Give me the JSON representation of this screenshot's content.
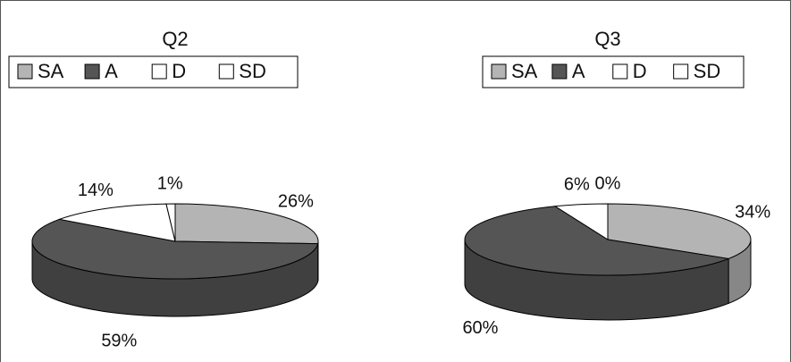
{
  "chart_data": [
    {
      "type": "pie",
      "title": "Q2",
      "categories": [
        "SA",
        "A",
        "D",
        "SD"
      ],
      "values": [
        26,
        59,
        14,
        1
      ],
      "value_labels": [
        "26%",
        "59%",
        "14%",
        "1%"
      ],
      "colors": [
        "#b4b4b4",
        "#555555",
        "#ffffff",
        "#ffffff"
      ],
      "legend": "top"
    },
    {
      "type": "pie",
      "title": "Q3",
      "categories": [
        "SA",
        "A",
        "D",
        "SD"
      ],
      "values": [
        34,
        60,
        6,
        0
      ],
      "value_labels": [
        "34%",
        "60%",
        "6%",
        "0%"
      ],
      "colors": [
        "#b4b4b4",
        "#555555",
        "#ffffff",
        "#ffffff"
      ],
      "legend": "top"
    }
  ]
}
